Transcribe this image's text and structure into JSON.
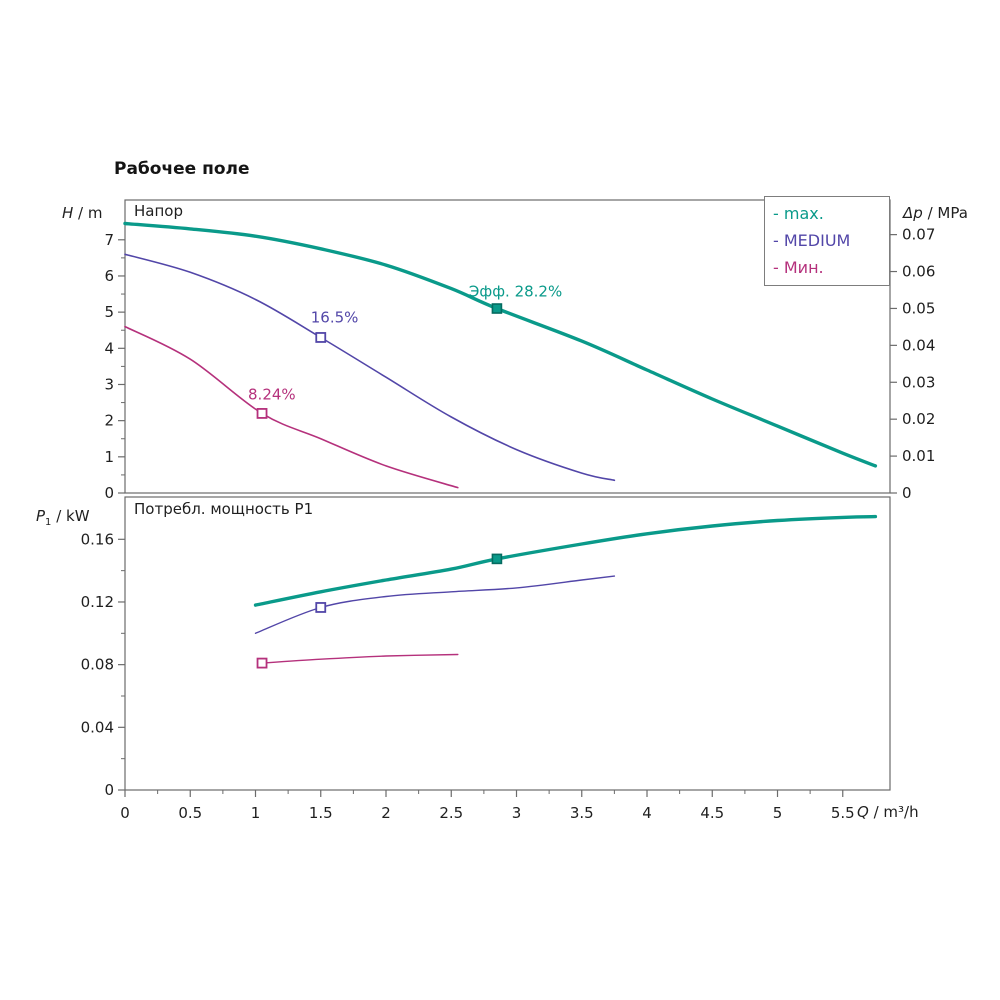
{
  "page": {
    "title": "Рабочее поле"
  },
  "colors": {
    "max": "#0a9a8a",
    "medium": "#5246a8",
    "min": "#b5317c",
    "axis": "#6b6b6b",
    "tick_text": "#1f1f1f"
  },
  "legend": {
    "items": [
      {
        "label": "- max.",
        "series": "max"
      },
      {
        "label": "- MEDIUM",
        "series": "medium"
      },
      {
        "label": "- Мин.",
        "series": "min"
      }
    ]
  },
  "axis_labels": {
    "head_left_symbol": "H",
    "head_left_unit": " / m",
    "head_right_symbol": "Δp",
    "head_right_unit": " / MPa",
    "power_left_symbol": "P",
    "power_left_sub": "1",
    "power_left_unit": " / kW",
    "x_symbol": "Q",
    "x_unit": " / m³/h"
  },
  "xaxis": {
    "ticks": [
      {
        "v": 0,
        "label": "0"
      },
      {
        "v": 0.5,
        "label": "0.5"
      },
      {
        "v": 1,
        "label": "1"
      },
      {
        "v": 1.5,
        "label": "1.5"
      },
      {
        "v": 2,
        "label": "2"
      },
      {
        "v": 2.5,
        "label": "2.5"
      },
      {
        "v": 3,
        "label": "3"
      },
      {
        "v": 3.5,
        "label": "3.5"
      },
      {
        "v": 4,
        "label": "4"
      },
      {
        "v": 4.5,
        "label": "4.5"
      },
      {
        "v": 5,
        "label": "5"
      },
      {
        "v": 5.5,
        "label": "5.5"
      }
    ]
  },
  "chart_data": [
    {
      "id": "head",
      "type": "line",
      "title": "Напор",
      "xlabel": "Q / m³/h",
      "ylabel": "H / m",
      "ylabel_right": "Δp / MPa",
      "xlim": [
        0,
        5.862
      ],
      "ylim": [
        0,
        8.1
      ],
      "grid": false,
      "yticks": [
        {
          "v": 0,
          "label": "0"
        },
        {
          "v": 1,
          "label": "1"
        },
        {
          "v": 2,
          "label": "2"
        },
        {
          "v": 3,
          "label": "3"
        },
        {
          "v": 4,
          "label": "4"
        },
        {
          "v": 5,
          "label": "5"
        },
        {
          "v": 6,
          "label": "6"
        },
        {
          "v": 7,
          "label": "7"
        }
      ],
      "right_axis": {
        "unit_per_m": 0.0098,
        "ticks": [
          {
            "v": 0,
            "label": "0"
          },
          {
            "v": 0.01,
            "label": "0.01"
          },
          {
            "v": 0.02,
            "label": "0.02"
          },
          {
            "v": 0.03,
            "label": "0.03"
          },
          {
            "v": 0.04,
            "label": "0.04"
          },
          {
            "v": 0.05,
            "label": "0.05"
          },
          {
            "v": 0.06,
            "label": "0.06"
          },
          {
            "v": 0.07,
            "label": "0.07"
          }
        ]
      },
      "series": [
        {
          "name": "max",
          "color_key": "max",
          "width": 3.4,
          "points": [
            [
              0,
              7.45
            ],
            [
              0.5,
              7.3
            ],
            [
              1,
              7.1
            ],
            [
              1.5,
              6.75
            ],
            [
              2,
              6.3
            ],
            [
              2.5,
              5.65
            ],
            [
              2.85,
              5.1
            ],
            [
              3.5,
              4.2
            ],
            [
              4,
              3.4
            ],
            [
              4.5,
              2.6
            ],
            [
              5,
              1.85
            ],
            [
              5.5,
              1.1
            ],
            [
              5.75,
              0.75
            ]
          ],
          "marker": {
            "q": 2.85,
            "y": 5.1,
            "filled": true,
            "label": "Эфф. 28.2%",
            "dx": -28,
            "dy": -12
          }
        },
        {
          "name": "medium",
          "color_key": "medium",
          "width": 1.6,
          "points": [
            [
              0,
              6.6
            ],
            [
              0.5,
              6.1
            ],
            [
              1,
              5.35
            ],
            [
              1.5,
              4.3
            ],
            [
              2,
              3.2
            ],
            [
              2.5,
              2.1
            ],
            [
              3,
              1.2
            ],
            [
              3.5,
              0.55
            ],
            [
              3.75,
              0.35
            ]
          ],
          "marker": {
            "q": 1.5,
            "y": 4.3,
            "filled": false,
            "label": "16.5%",
            "dx": -10,
            "dy": -15
          }
        },
        {
          "name": "min",
          "color_key": "min",
          "width": 1.6,
          "points": [
            [
              0,
              4.6
            ],
            [
              0.5,
              3.7
            ],
            [
              1.05,
              2.2
            ],
            [
              1.5,
              1.5
            ],
            [
              2,
              0.75
            ],
            [
              2.55,
              0.15
            ]
          ],
          "marker": {
            "q": 1.05,
            "y": 2.2,
            "filled": false,
            "label": "8.24%",
            "dx": -14,
            "dy": -14
          }
        }
      ]
    },
    {
      "id": "power",
      "type": "line",
      "title": "Потребл. мощность P1",
      "xlabel": "Q / m³/h",
      "ylabel": "P1 / kW",
      "xlim": [
        0,
        5.862
      ],
      "ylim": [
        0,
        0.187
      ],
      "grid": false,
      "yticks": [
        {
          "v": 0,
          "label": "0"
        },
        {
          "v": 0.04,
          "label": "0.04"
        },
        {
          "v": 0.08,
          "label": "0.08"
        },
        {
          "v": 0.12,
          "label": "0.12"
        },
        {
          "v": 0.16,
          "label": "0.16"
        }
      ],
      "series": [
        {
          "name": "max",
          "color_key": "max",
          "width": 3.4,
          "points": [
            [
              1,
              0.118
            ],
            [
              1.5,
              0.1265
            ],
            [
              2,
              0.134
            ],
            [
              2.5,
              0.141
            ],
            [
              2.85,
              0.1475
            ],
            [
              3.5,
              0.157
            ],
            [
              4,
              0.1635
            ],
            [
              4.5,
              0.1685
            ],
            [
              5,
              0.172
            ],
            [
              5.5,
              0.174
            ],
            [
              5.75,
              0.1745
            ]
          ],
          "marker": {
            "q": 2.85,
            "y": 0.1475,
            "filled": true
          }
        },
        {
          "name": "medium",
          "color_key": "medium",
          "width": 1.4,
          "points": [
            [
              1,
              0.1
            ],
            [
              1.5,
              0.1165
            ],
            [
              2,
              0.1235
            ],
            [
              2.5,
              0.1265
            ],
            [
              3,
              0.129
            ],
            [
              3.5,
              0.134
            ],
            [
              3.75,
              0.1365
            ]
          ],
          "marker": {
            "q": 1.5,
            "y": 0.1165,
            "filled": false
          }
        },
        {
          "name": "min",
          "color_key": "min",
          "width": 1.4,
          "points": [
            [
              1.05,
              0.081
            ],
            [
              1.5,
              0.0835
            ],
            [
              2,
              0.0855
            ],
            [
              2.55,
              0.0865
            ]
          ],
          "marker": {
            "q": 1.05,
            "y": 0.081,
            "filled": false
          }
        }
      ]
    }
  ]
}
